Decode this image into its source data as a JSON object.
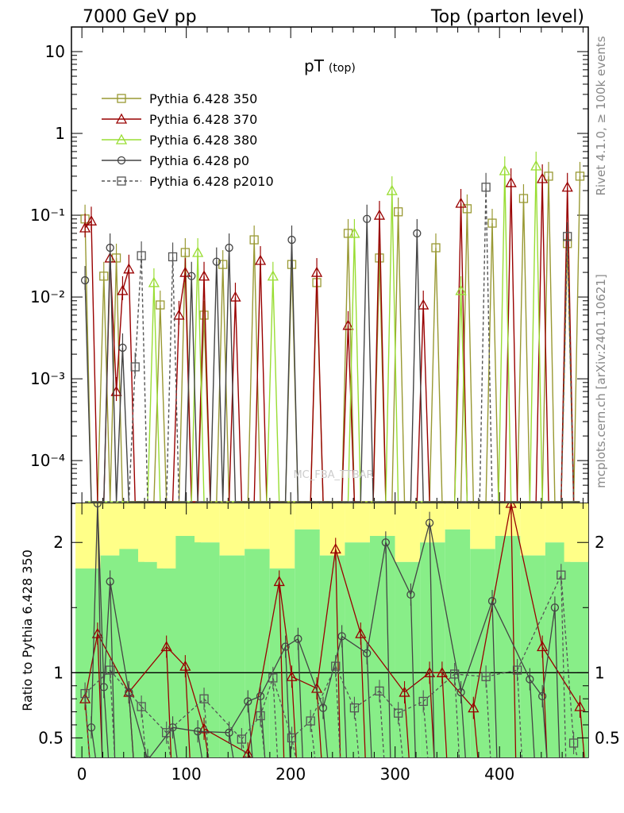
{
  "header": {
    "left_title": "7000 GeV pp",
    "right_title": "Top (parton level)"
  },
  "sidebar": {
    "rivet_label": "Rivet 4.1.0, ≥ 100k events",
    "source_label": "mcplots.cern.ch [arXiv:2401.10621]"
  },
  "watermark": "MC_FBA_TTBAR",
  "colors": {
    "p350": "#999933",
    "p370": "#990000",
    "p380": "#99dd33",
    "p0": "#444444",
    "p2010": "#555555",
    "band_yellow": "#ffff88",
    "band_green": "#88ee88"
  },
  "chart_data": [
    {
      "panel": "main",
      "type": "line",
      "title": "pT",
      "title_sub": "(top)",
      "xlabel": "",
      "ylabel": "",
      "yscale": "log",
      "xlim": [
        -10,
        485
      ],
      "ylim": [
        3e-05,
        20
      ],
      "x_ticks": [
        0,
        100,
        200,
        300,
        400
      ],
      "y_ticks": [
        {
          "value": 10,
          "label": "10"
        },
        {
          "value": 1,
          "label": "1"
        },
        {
          "value": 0.1,
          "label": "10⁻¹"
        },
        {
          "value": 0.01,
          "label": "10⁻²"
        },
        {
          "value": 0.001,
          "label": "10⁻³"
        },
        {
          "value": 0.0001,
          "label": "10⁻⁴"
        }
      ],
      "x": [
        3,
        9,
        15,
        21,
        27,
        33,
        39,
        45,
        51,
        57,
        63,
        69,
        75,
        81,
        87,
        93,
        99,
        105,
        111,
        117,
        123,
        129,
        135,
        141,
        147,
        153,
        159,
        165,
        171,
        177,
        183,
        189,
        195,
        201,
        207,
        213,
        219,
        225,
        231,
        237,
        243,
        249,
        255,
        261,
        267,
        273,
        279,
        285,
        291,
        297,
        303,
        309,
        315,
        321,
        327,
        333,
        339,
        345,
        351,
        357,
        363,
        369,
        375,
        381,
        387,
        393,
        399,
        405,
        411,
        417,
        423,
        429,
        435,
        441,
        447,
        453,
        459,
        465,
        471,
        477
      ],
      "series": [
        {
          "name": "Pythia 6.428 350",
          "marker": "square-open",
          "style": "solid",
          "values": [
            0.09,
            0.0,
            0.0,
            0.018,
            0.0,
            0.03,
            0.0,
            0.0,
            0.0,
            0.0,
            0.0,
            0.0,
            0.008,
            0.0,
            0.0,
            0.0,
            0.035,
            0.0,
            0.0,
            0.006,
            0.0,
            0.0,
            0.025,
            0.0,
            0.0,
            0.0,
            0.0,
            0.05,
            0.0,
            0.0,
            0.0,
            0.0,
            0.0,
            0.025,
            0.0,
            0.0,
            0.0,
            0.015,
            0.0,
            0.0,
            0.0,
            0.0,
            0.06,
            0.0,
            0.0,
            0.0,
            0.0,
            0.03,
            0.0,
            0.0,
            0.11,
            0.0,
            0.0,
            0.0,
            0.0,
            0.0,
            0.04,
            0.0,
            0.0,
            0.0,
            0.0,
            0.12,
            0.0,
            0.0,
            0.0,
            0.08,
            0.0,
            0.0,
            0.0,
            0.0,
            0.16,
            0.0,
            0.0,
            0.0,
            0.3,
            0.0,
            0.0,
            0.045,
            0.0,
            0.3
          ]
        },
        {
          "name": "Pythia 6.428 370",
          "marker": "triangle-open",
          "style": "solid",
          "values": [
            0.07,
            0.085,
            0.0,
            0.0,
            0.03,
            0.0007,
            0.012,
            0.022,
            0.0,
            0.0,
            0.0,
            0.0,
            0.0,
            0.0,
            0.0,
            0.006,
            0.02,
            0.0,
            0.0,
            0.018,
            0.0,
            0.0,
            0.0,
            0.0,
            0.01,
            0.0,
            0.0,
            0.0,
            0.028,
            0.0,
            0.0,
            0.0,
            0.0,
            0.0,
            0.0,
            0.0,
            0.0,
            0.02,
            0.0,
            0.0,
            0.0,
            0.0,
            0.0045,
            0.0,
            0.0,
            0.0,
            0.0,
            0.1,
            0.0,
            0.0,
            0.0,
            0.0,
            0.0,
            0.0,
            0.008,
            0.0,
            0.0,
            0.0,
            0.0,
            0.0,
            0.14,
            0.0,
            0.0,
            0.0,
            0.0,
            0.0,
            0.0,
            0.0,
            0.25,
            0.0,
            0.0,
            0.0,
            0.0,
            0.28,
            0.0,
            0.0,
            0.0,
            0.22,
            0.0,
            0.0
          ]
        },
        {
          "name": "Pythia 6.428 380",
          "marker": "triangle-open",
          "style": "solid",
          "values": [
            0.0,
            0.0,
            0.0,
            0.0,
            0.0,
            0.0,
            0.0,
            0.0,
            0.0,
            0.0,
            0.0,
            0.015,
            0.0,
            0.0,
            0.0,
            0.0,
            0.0,
            0.0,
            0.035,
            0.0,
            0.0,
            0.0,
            0.0,
            0.0,
            0.0,
            0.0,
            0.0,
            0.0,
            0.0,
            0.0,
            0.018,
            0.0,
            0.0,
            0.0,
            0.0,
            0.0,
            0.0,
            0.0,
            0.0,
            0.0,
            0.0,
            0.0,
            0.0,
            0.06,
            0.0,
            0.0,
            0.0,
            0.0,
            0.0,
            0.2,
            0.0,
            0.0,
            0.0,
            0.0,
            0.0,
            0.0,
            0.0,
            0.0,
            0.0,
            0.0,
            0.012,
            0.0,
            0.0,
            0.0,
            0.0,
            0.0,
            0.0,
            0.35,
            0.0,
            0.0,
            0.0,
            0.0,
            0.4,
            0.0,
            0.0,
            0.0,
            0.0,
            0.0,
            0.0,
            0.0
          ]
        },
        {
          "name": "Pythia 6.428 p0",
          "marker": "circle-open",
          "style": "solid",
          "values": [
            0.016,
            0.0,
            0.0,
            0.0,
            0.04,
            0.0,
            0.0024,
            0.0,
            0.0,
            0.0,
            0.0,
            0.0,
            0.0,
            0.0,
            0.0,
            0.0,
            0.0,
            0.018,
            0.0,
            0.0,
            0.0,
            0.027,
            0.0,
            0.04,
            0.0,
            0.0,
            0.0,
            0.0,
            0.0,
            0.0,
            0.0,
            0.0,
            0.0,
            0.05,
            0.0,
            0.0,
            0.0,
            0.0,
            0.0,
            0.0,
            0.0,
            0.0,
            0.0,
            0.0,
            0.0,
            0.09,
            0.0,
            0.0,
            0.0,
            0.0,
            0.0,
            0.0,
            0.0,
            0.06,
            0.0,
            0.0,
            0.0,
            0.0,
            0.0,
            0.0,
            0.0,
            0.0,
            0.0,
            0.0,
            0.0,
            0.0,
            0.0,
            0.0,
            0.0,
            0.0,
            0.0,
            0.0,
            0.0,
            0.0,
            0.0,
            0.0,
            0.0,
            0.0,
            0.0,
            0.0
          ]
        },
        {
          "name": "Pythia 6.428 p2010",
          "marker": "square-open",
          "style": "dashed",
          "values": [
            0.0,
            0.0,
            0.0,
            0.0,
            0.0,
            0.0,
            0.0,
            0.0,
            0.0014,
            0.032,
            0.0,
            0.0,
            0.0,
            0.0,
            0.031,
            0.0,
            0.0,
            0.0,
            0.0,
            0.0,
            0.0,
            0.0,
            0.0,
            0.0,
            0.0,
            0.0,
            0.0,
            0.0,
            0.0,
            0.0,
            0.0,
            0.0,
            0.0,
            0.0,
            0.0,
            0.0,
            0.0,
            0.0,
            0.0,
            0.0,
            0.0,
            0.0,
            0.0,
            0.0,
            0.0,
            0.0,
            0.0,
            0.0,
            0.0,
            0.0,
            0.0,
            0.0,
            0.0,
            0.0,
            0.0,
            0.0,
            0.0,
            0.0,
            0.0,
            0.0,
            0.0,
            0.0,
            0.0,
            0.0,
            0.22,
            0.0,
            0.0,
            0.0,
            0.0,
            0.0,
            0.0,
            0.0,
            0.0,
            0.0,
            0.0,
            0.0,
            0.0,
            0.055,
            0.0,
            0.0
          ]
        }
      ]
    },
    {
      "panel": "ratio",
      "type": "line",
      "ylabel": "Ratio to Pythia 6.428 350",
      "xlim": [
        -10,
        485
      ],
      "ylim": [
        0.35,
        2.3
      ],
      "x_ticks": [
        0,
        100,
        200,
        300,
        400
      ],
      "y_ticks": [
        {
          "value": 0.5,
          "label": "0.5"
        },
        {
          "value": 1,
          "label": "1"
        },
        {
          "value": 2,
          "label": "2"
        }
      ],
      "x": [
        3,
        27,
        45,
        63,
        81,
        99,
        117,
        141,
        165,
        189,
        213,
        237,
        261,
        285,
        309,
        333,
        357,
        381,
        405,
        429,
        453,
        471
      ],
      "band_yellow": [
        [
          1.8,
          2.3
        ],
        [
          1.9,
          2.3
        ],
        [
          1.95,
          2.3
        ],
        [
          1.85,
          2.3
        ],
        [
          1.8,
          2.3
        ],
        [
          2.05,
          2.3
        ],
        [
          2.0,
          2.3
        ],
        [
          1.9,
          2.3
        ],
        [
          1.95,
          2.3
        ],
        [
          1.8,
          2.3
        ],
        [
          2.1,
          2.3
        ],
        [
          1.9,
          2.3
        ],
        [
          2.0,
          2.3
        ],
        [
          2.05,
          2.3
        ],
        [
          1.85,
          2.3
        ],
        [
          2.0,
          2.3
        ],
        [
          2.1,
          2.3
        ],
        [
          1.95,
          2.3
        ],
        [
          2.05,
          2.3
        ],
        [
          1.9,
          2.3
        ],
        [
          2.0,
          2.3
        ],
        [
          1.85,
          2.3
        ]
      ],
      "band_green": [
        [
          0.35,
          1.8
        ],
        [
          0.35,
          1.9
        ],
        [
          0.35,
          1.95
        ],
        [
          0.35,
          1.85
        ],
        [
          0.35,
          1.8
        ],
        [
          0.35,
          2.05
        ],
        [
          0.35,
          2.0
        ],
        [
          0.35,
          1.9
        ],
        [
          0.35,
          1.95
        ],
        [
          0.35,
          1.8
        ],
        [
          0.35,
          2.1
        ],
        [
          0.35,
          1.9
        ],
        [
          0.35,
          2.0
        ],
        [
          0.35,
          2.05
        ],
        [
          0.35,
          1.85
        ],
        [
          0.35,
          2.0
        ],
        [
          0.35,
          2.1
        ],
        [
          0.35,
          1.95
        ],
        [
          0.35,
          2.05
        ],
        [
          0.35,
          1.9
        ],
        [
          0.35,
          2.0
        ],
        [
          0.35,
          1.85
        ]
      ],
      "series": [
        {
          "name": "Pythia 6.428 370",
          "marker": "triangle-open",
          "style": "solid",
          "x": [
            3,
            15,
            45,
            81,
            99,
            117,
            159,
            189,
            201,
            225,
            243,
            267,
            309,
            333,
            345,
            375,
            411,
            441,
            477
          ],
          "values": [
            0.8,
            1.3,
            0.85,
            1.2,
            1.05,
            0.57,
            0.38,
            1.7,
            0.97,
            0.88,
            1.95,
            1.3,
            0.85,
            1.0,
            1.0,
            0.73,
            2.3,
            1.2,
            0.74
          ]
        },
        {
          "name": "Pythia 6.428 p0",
          "marker": "circle-open",
          "style": "solid",
          "x": [
            9,
            15,
            21,
            27,
            45,
            63,
            87,
            111,
            141,
            159,
            171,
            195,
            207,
            231,
            249,
            273,
            291,
            315,
            333,
            363,
            393,
            429,
            441,
            453
          ],
          "values": [
            0.58,
            2.3,
            0.89,
            1.7,
            0.85,
            0.33,
            0.58,
            0.55,
            0.54,
            0.78,
            0.82,
            1.2,
            1.26,
            0.73,
            1.28,
            1.15,
            2.0,
            1.6,
            2.15,
            0.85,
            1.55,
            0.95,
            0.82,
            1.5
          ]
        },
        {
          "name": "Pythia 6.428 p2010",
          "marker": "square-open",
          "style": "dashed",
          "x": [
            3,
            27,
            57,
            81,
            117,
            153,
            171,
            183,
            201,
            219,
            243,
            261,
            285,
            303,
            327,
            357,
            387,
            417,
            459,
            471
          ],
          "values": [
            0.84,
            1.02,
            0.74,
            0.54,
            0.8,
            0.49,
            0.67,
            0.96,
            0.5,
            0.63,
            1.05,
            0.73,
            0.86,
            0.69,
            0.78,
            0.99,
            0.97,
            1.02,
            1.75,
            0.46
          ]
        }
      ]
    }
  ]
}
